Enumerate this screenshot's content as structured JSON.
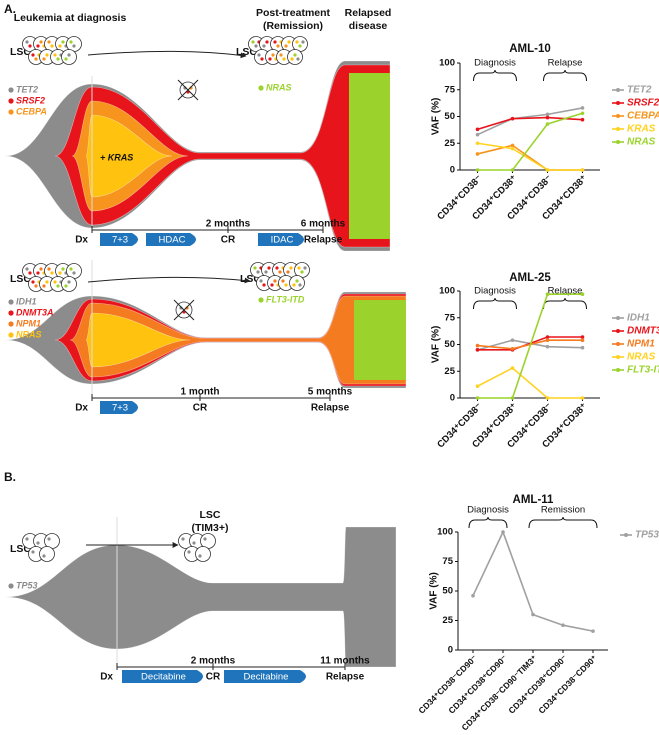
{
  "panels": [
    "A.",
    "B."
  ],
  "fish_plots": [
    {
      "headers": [
        "Leukemia at diagnosis",
        "Post-treatment",
        "(Remission)",
        "Relapsed",
        "disease"
      ],
      "lsc": [
        "LSC",
        "LSC"
      ],
      "mutations": [
        {
          "name": "TET2",
          "color": "#8c8c8c"
        },
        {
          "name": "SRSF2",
          "color": "#e8141b"
        },
        {
          "name": "CEBPA",
          "color": "#f7941d"
        }
      ],
      "subclones": [
        {
          "name": "+ KRAS",
          "color": "#ffc20e"
        },
        {
          "name": "NRAS",
          "color": "#9bd32c"
        }
      ],
      "timepoints": [
        {
          "time": "Dx"
        },
        {
          "time": "2 months",
          "state": "CR"
        },
        {
          "time": "6 months",
          "state": "Relapse"
        }
      ],
      "treatments": [
        "7+3",
        "HDAC",
        "IDAC"
      ]
    },
    {
      "headers": [],
      "lsc": [
        "LSC",
        "LSC"
      ],
      "mutations": [
        {
          "name": "IDH1",
          "color": "#8c8c8c"
        },
        {
          "name": "DNMT3A",
          "color": "#e8141b"
        },
        {
          "name": "NPM1",
          "color": "#f47b20"
        },
        {
          "name": "NRAS",
          "color": "#ffc20e"
        }
      ],
      "subclones": [
        {
          "name": "FLT3-ITD",
          "color": "#9bd32c"
        }
      ],
      "timepoints": [
        {
          "time": "Dx"
        },
        {
          "time": "1 month",
          "state": "CR"
        },
        {
          "time": "5 months",
          "state": "Relapse"
        }
      ],
      "treatments": [
        "7+3"
      ]
    },
    {
      "headers": [],
      "lsc": [
        "LSC",
        "LSC",
        "(TIM3+)"
      ],
      "mutations": [
        {
          "name": "TP53",
          "color": "#8c8c8c"
        }
      ],
      "subclones": [],
      "timepoints": [
        {
          "time": "Dx"
        },
        {
          "time": "2 months",
          "state": "CR"
        },
        {
          "time": "11 months",
          "state": "Relapse"
        }
      ],
      "treatments": [
        "Decitabine",
        "Decitabine"
      ]
    }
  ],
  "chart_data": [
    {
      "type": "line",
      "title": "AML-10",
      "y_label": "VAF (%)",
      "categories": [
        "CD34⁺CD38⁻",
        "CD34⁺CD38⁺",
        "CD34⁺CD38⁻",
        "CD34⁺CD38⁺"
      ],
      "brackets": [
        "Diagnosis",
        "Relapse"
      ],
      "ylim": [
        0,
        100
      ],
      "yticks": [
        0,
        25,
        50,
        75,
        100
      ],
      "series": [
        {
          "name": "TET2",
          "color": "#a0a0a0",
          "values": [
            33,
            48,
            52,
            58
          ]
        },
        {
          "name": "SRSF2",
          "color": "#e8141b",
          "values": [
            38,
            48,
            49,
            47
          ]
        },
        {
          "name": "CEBPA",
          "color": "#f7941d",
          "values": [
            15,
            23,
            0,
            0
          ]
        },
        {
          "name": "KRAS",
          "color": "#ffd21f",
          "values": [
            25,
            20,
            0,
            0
          ]
        },
        {
          "name": "NRAS",
          "color": "#9bd32c",
          "values": [
            0,
            0,
            43,
            53
          ]
        }
      ]
    },
    {
      "type": "line",
      "title": "AML-25",
      "y_label": "VAF (%)",
      "categories": [
        "CD34⁺CD38⁻",
        "CD34⁺CD38⁺",
        "CD34⁺CD38⁻",
        "CD34⁺CD38⁺"
      ],
      "brackets": [
        "Diagnosis",
        "Relapse"
      ],
      "ylim": [
        0,
        100
      ],
      "yticks": [
        0,
        25,
        50,
        75,
        100
      ],
      "series": [
        {
          "name": "IDH1",
          "color": "#a0a0a0",
          "values": [
            45,
            54,
            48,
            47
          ]
        },
        {
          "name": "DNMT3A",
          "color": "#e8141b",
          "values": [
            45,
            45,
            57,
            57
          ]
        },
        {
          "name": "NPM1",
          "color": "#f47b20",
          "values": [
            49,
            46,
            54,
            54
          ]
        },
        {
          "name": "NRAS",
          "color": "#ffd21f",
          "values": [
            11,
            28,
            0,
            0
          ]
        },
        {
          "name": "FLT3-ITD",
          "color": "#9bd32c",
          "values": [
            0,
            0,
            97,
            97
          ]
        }
      ]
    },
    {
      "type": "line",
      "title": "AML-11",
      "y_label": "VAF (%)",
      "categories": [
        "CD34⁺CD38⁻CD90⁻",
        "CD34⁺CD38⁺CD90⁻",
        "CD34⁺CD38⁻CD90⁻TIM3⁺",
        "CD34⁺CD38⁺CD90⁻",
        "CD34⁺CD38⁻CD90⁺"
      ],
      "brackets": [
        "Diagnosis",
        "Remission"
      ],
      "ylim": [
        0,
        100
      ],
      "yticks": [
        0,
        25,
        50,
        75,
        100
      ],
      "series": [
        {
          "name": "TP53",
          "color": "#a0a0a0",
          "values": [
            46,
            100,
            30,
            21,
            16
          ]
        }
      ]
    }
  ]
}
